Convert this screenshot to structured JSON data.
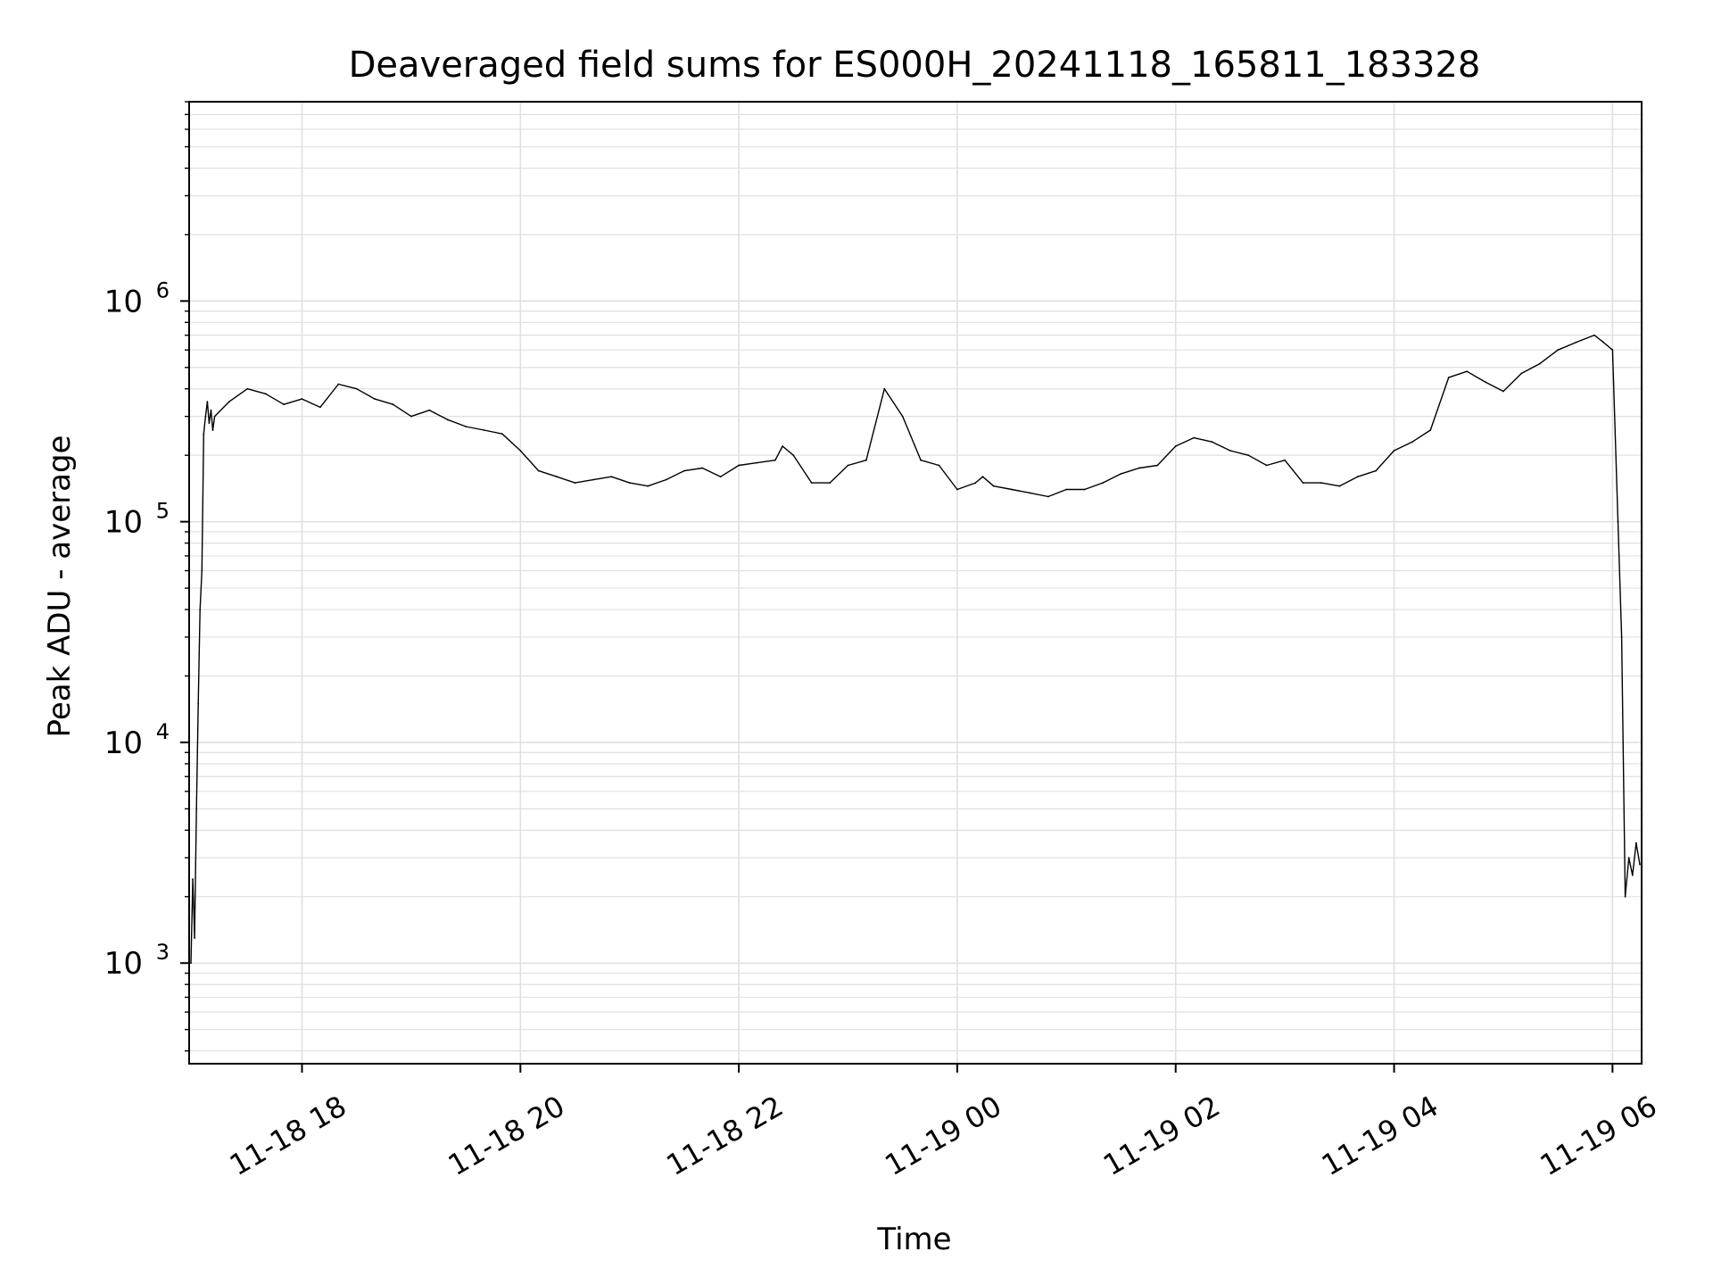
{
  "chart_data": {
    "type": "line",
    "title": "Deaveraged field sums for ES000H_20241118_165811_183328",
    "xlabel": "Time",
    "ylabel": "Peak ADU - average",
    "yscale": "log",
    "ylim": [
      350,
      8000000
    ],
    "xlim": [
      "2024-11-18 16:58",
      "2024-11-19 06:16"
    ],
    "grid": true,
    "line_color": "#000000",
    "grid_color": "#e0e0e0",
    "x_ticks": [
      {
        "value": "2024-11-18 18:00",
        "label": "11-18 18"
      },
      {
        "value": "2024-11-18 20:00",
        "label": "11-18 20"
      },
      {
        "value": "2024-11-18 22:00",
        "label": "11-18 22"
      },
      {
        "value": "2024-11-19 00:00",
        "label": "11-19 00"
      },
      {
        "value": "2024-11-19 02:00",
        "label": "11-19 02"
      },
      {
        "value": "2024-11-19 04:00",
        "label": "11-19 04"
      },
      {
        "value": "2024-11-19 06:00",
        "label": "11-19 06"
      }
    ],
    "y_ticks": [
      {
        "value": 1000,
        "base": "10",
        "exp": "3"
      },
      {
        "value": 10000,
        "base": "10",
        "exp": "4"
      },
      {
        "value": 100000,
        "base": "10",
        "exp": "5"
      },
      {
        "value": 1000000,
        "base": "10",
        "exp": "6"
      }
    ],
    "series": [
      {
        "x": [
          "2024-11-18 16:59",
          "2024-11-18 17:00",
          "2024-11-18 17:01",
          "2024-11-18 17:02",
          "2024-11-18 17:03",
          "2024-11-18 17:04",
          "2024-11-18 17:05",
          "2024-11-18 17:06",
          "2024-11-18 17:07",
          "2024-11-18 17:08",
          "2024-11-18 17:09",
          "2024-11-18 17:10",
          "2024-11-18 17:11",
          "2024-11-18 17:12",
          "2024-11-18 17:20",
          "2024-11-18 17:30",
          "2024-11-18 17:40",
          "2024-11-18 17:50",
          "2024-11-18 18:00",
          "2024-11-18 18:10",
          "2024-11-18 18:20",
          "2024-11-18 18:30",
          "2024-11-18 18:40",
          "2024-11-18 18:50",
          "2024-11-18 19:00",
          "2024-11-18 19:10",
          "2024-11-18 19:20",
          "2024-11-18 19:30",
          "2024-11-18 19:40",
          "2024-11-18 19:50",
          "2024-11-18 20:00",
          "2024-11-18 20:10",
          "2024-11-18 20:20",
          "2024-11-18 20:30",
          "2024-11-18 20:40",
          "2024-11-18 20:50",
          "2024-11-18 21:00",
          "2024-11-18 21:10",
          "2024-11-18 21:20",
          "2024-11-18 21:30",
          "2024-11-18 21:40",
          "2024-11-18 21:50",
          "2024-11-18 22:00",
          "2024-11-18 22:10",
          "2024-11-18 22:20",
          "2024-11-18 22:24",
          "2024-11-18 22:30",
          "2024-11-18 22:40",
          "2024-11-18 22:50",
          "2024-11-18 23:00",
          "2024-11-18 23:10",
          "2024-11-18 23:20",
          "2024-11-18 23:30",
          "2024-11-18 23:40",
          "2024-11-18 23:50",
          "2024-11-19 00:00",
          "2024-11-19 00:10",
          "2024-11-19 00:14",
          "2024-11-19 00:20",
          "2024-11-19 00:30",
          "2024-11-19 00:40",
          "2024-11-19 00:50",
          "2024-11-19 01:00",
          "2024-11-19 01:10",
          "2024-11-19 01:20",
          "2024-11-19 01:30",
          "2024-11-19 01:40",
          "2024-11-19 01:50",
          "2024-11-19 02:00",
          "2024-11-19 02:10",
          "2024-11-19 02:20",
          "2024-11-19 02:30",
          "2024-11-19 02:40",
          "2024-11-19 02:50",
          "2024-11-19 03:00",
          "2024-11-19 03:10",
          "2024-11-19 03:20",
          "2024-11-19 03:30",
          "2024-11-19 03:40",
          "2024-11-19 03:50",
          "2024-11-19 04:00",
          "2024-11-19 04:10",
          "2024-11-19 04:20",
          "2024-11-19 04:30",
          "2024-11-19 04:40",
          "2024-11-19 04:50",
          "2024-11-19 05:00",
          "2024-11-19 05:10",
          "2024-11-19 05:20",
          "2024-11-19 05:30",
          "2024-11-19 05:40",
          "2024-11-19 05:50",
          "2024-11-19 05:55",
          "2024-11-19 06:00",
          "2024-11-19 06:03",
          "2024-11-19 06:05",
          "2024-11-19 06:07",
          "2024-11-19 06:09",
          "2024-11-19 06:11",
          "2024-11-19 06:13",
          "2024-11-19 06:15"
        ],
        "values": [
          1000,
          2400,
          1300,
          5000,
          15000,
          40000,
          60000,
          250000,
          300000,
          350000,
          280000,
          320000,
          260000,
          300000,
          350000,
          400000,
          380000,
          340000,
          360000,
          330000,
          420000,
          400000,
          360000,
          340000,
          300000,
          320000,
          290000,
          270000,
          260000,
          250000,
          210000,
          170000,
          160000,
          150000,
          155000,
          160000,
          150000,
          145000,
          155000,
          170000,
          175000,
          160000,
          180000,
          185000,
          190000,
          220000,
          200000,
          150000,
          150000,
          180000,
          190000,
          400000,
          300000,
          190000,
          180000,
          140000,
          150000,
          160000,
          145000,
          140000,
          135000,
          130000,
          140000,
          140000,
          150000,
          165000,
          175000,
          180000,
          220000,
          240000,
          230000,
          210000,
          200000,
          180000,
          190000,
          150000,
          150000,
          145000,
          160000,
          170000,
          210000,
          230000,
          260000,
          450000,
          480000,
          430000,
          390000,
          470000,
          520000,
          600000,
          650000,
          700000,
          650000,
          600000,
          100000,
          30000,
          2000,
          3000,
          2500,
          3500,
          2800
        ]
      }
    ]
  }
}
